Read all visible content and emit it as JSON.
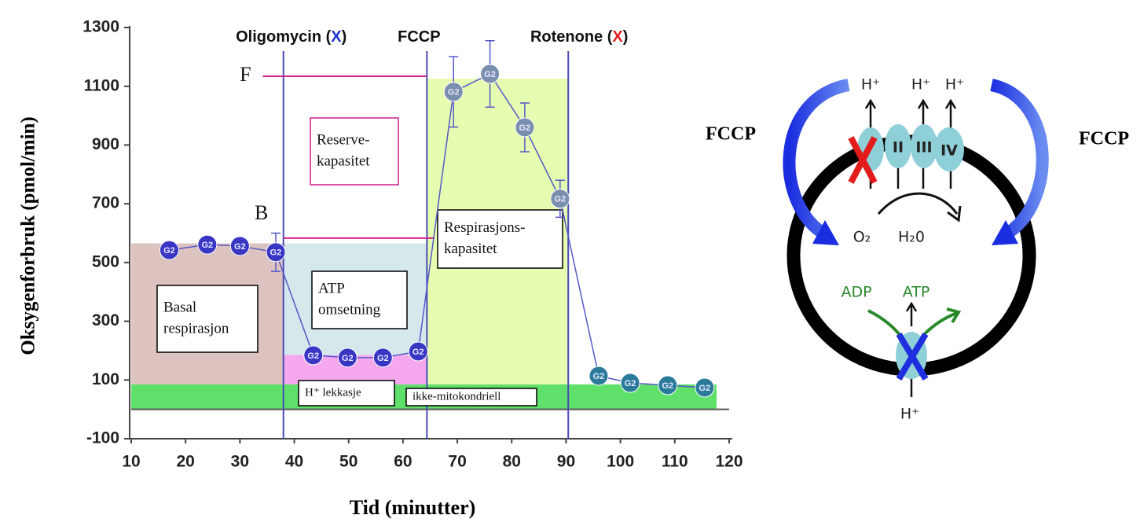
{
  "chart_data": {
    "type": "line",
    "x_label": "Tid (minutter)",
    "y_label": "Oksygenforbruk (pmol/min)",
    "xlim": [
      10,
      120
    ],
    "xticks": [
      10,
      20,
      30,
      40,
      50,
      60,
      70,
      80,
      90,
      100,
      110,
      120
    ],
    "ylim": [
      -100,
      1300
    ],
    "yticks": [
      -100,
      100,
      300,
      500,
      700,
      900,
      1100,
      1300
    ],
    "zero_line": true,
    "series": [
      {
        "color": "#3a36c4",
        "marker_label": "G2",
        "x": [
          17,
          24,
          30,
          36.6,
          43.5,
          49.8,
          56.3,
          62.8,
          69.3,
          76,
          82.4,
          88.9,
          96,
          101.8,
          108.7,
          115.5
        ],
        "values": [
          542,
          561,
          556,
          535,
          184,
          176,
          176,
          197,
          1081,
          1142,
          960,
          717,
          114,
          90,
          82,
          74
        ],
        "errors": [
          null,
          null,
          null,
          65,
          null,
          null,
          null,
          null,
          120,
          113,
          83,
          63,
          null,
          null,
          null,
          null
        ]
      }
    ],
    "treatments": [
      {
        "x": 38,
        "label_parts": [
          "Oligomycin (",
          "X",
          ")"
        ],
        "mark_color": "#2233cc"
      },
      {
        "x": 64.4,
        "label_parts": [
          "FCCP"
        ]
      },
      {
        "x": 90.4,
        "label_parts": [
          "Rotenone (",
          "X",
          ")"
        ],
        "mark_color": "#e02020"
      }
    ],
    "treatment_line_color": "#4a4ab8",
    "regions": [
      {
        "x": [
          10,
          117.7
        ],
        "y": [
          0,
          85
        ],
        "color": "#5fe06a"
      },
      {
        "x": [
          10,
          38
        ],
        "y": [
          85,
          565
        ],
        "color": "#dcc3bf"
      },
      {
        "x": [
          38,
          64.4
        ],
        "y": [
          185,
          565
        ],
        "color": "#d5e8ec"
      },
      {
        "x": [
          38,
          64.4
        ],
        "y": [
          85,
          185
        ],
        "color": "#f5a8ee"
      },
      {
        "x": [
          64.4,
          90.4
        ],
        "y": [
          85,
          1126
        ],
        "color": "#e6fcb0"
      }
    ],
    "reference_lines": [
      {
        "label": "F",
        "y": 1134,
        "x": [
          34.2,
          64.4
        ]
      },
      {
        "label": "B",
        "y": 583,
        "x": [
          38,
          65.8
        ]
      }
    ],
    "reference_color": "#d0208c",
    "annotations": [
      {
        "lines": [
          "Basal",
          "respirasjon"
        ]
      },
      {
        "lines": [
          "ATP",
          "omsetning"
        ]
      },
      {
        "lines": [
          "Reserve-",
          "kapasitet"
        ]
      },
      {
        "lines": [
          "Respirasjons-",
          "kapasitet"
        ]
      },
      {
        "lines": [
          "H⁺ lekkasje"
        ]
      },
      {
        "lines": [
          "ikke-mitokondriell"
        ]
      }
    ]
  },
  "diagram": {
    "fccp_left": "FCCP",
    "fccp_right": "FCCP",
    "h_plus_top": [
      "H⁺",
      "H⁺",
      "H⁺"
    ],
    "complexes": [
      "II",
      "III",
      "IV"
    ],
    "o2": "O₂",
    "h2o": "H₂0",
    "adp": "ADP",
    "atp": "ATP",
    "h_plus_bottom": "H⁺"
  }
}
